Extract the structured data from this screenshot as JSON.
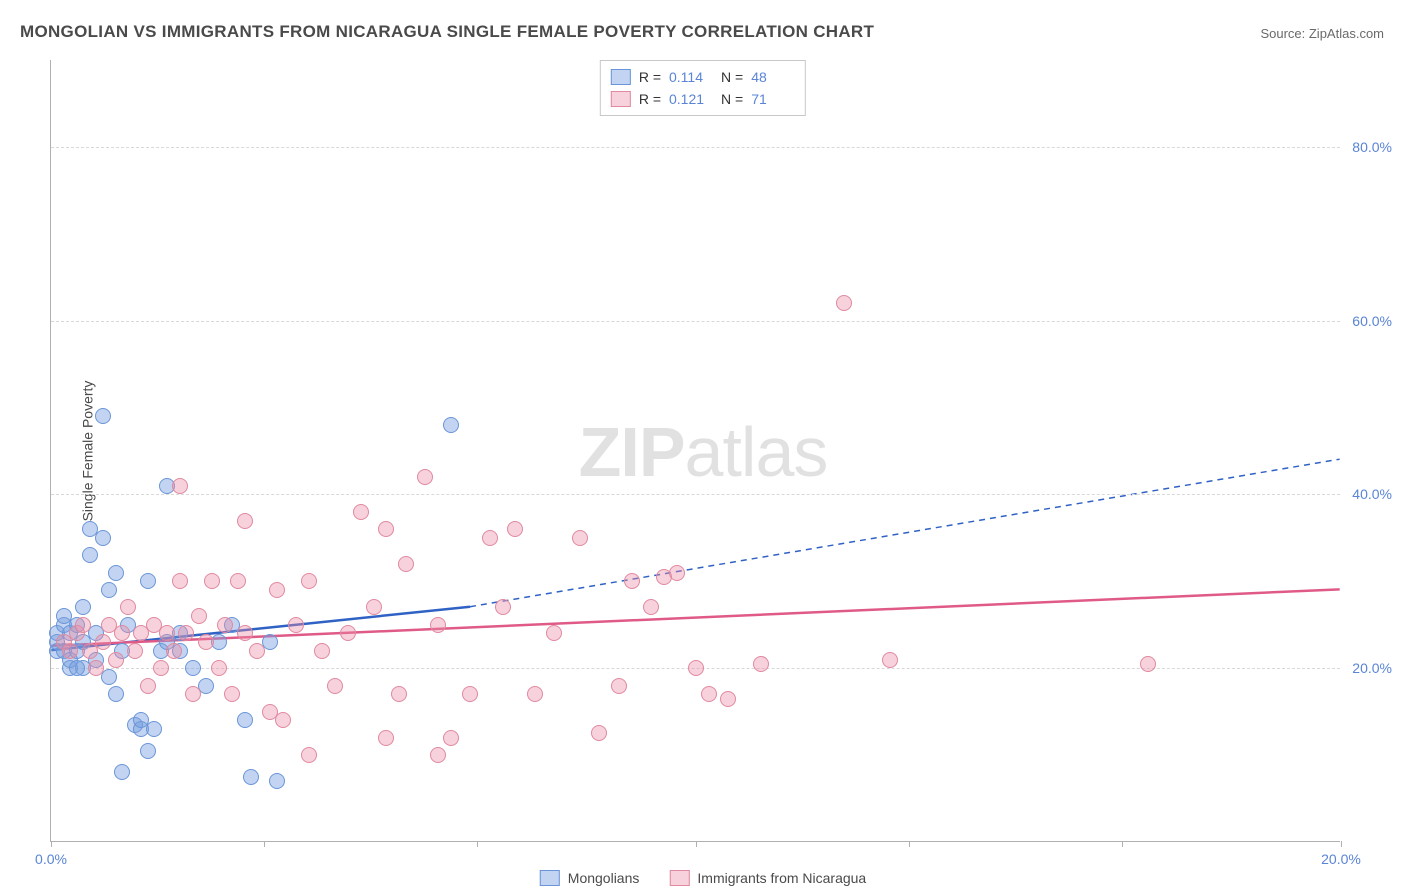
{
  "title": "MONGOLIAN VS IMMIGRANTS FROM NICARAGUA SINGLE FEMALE POVERTY CORRELATION CHART",
  "source": "Source: ZipAtlas.com",
  "y_axis_label": "Single Female Poverty",
  "watermark_a": "ZIP",
  "watermark_b": "atlas",
  "chart": {
    "type": "scatter",
    "background_color": "#ffffff",
    "grid_color": "#d8d8d8",
    "axis_color": "#b0b0b0",
    "tick_color": "#5a84d6",
    "xlim": [
      0,
      20
    ],
    "ylim": [
      0,
      90
    ],
    "y_ticks": [
      20,
      40,
      60,
      80
    ],
    "y_tick_labels": [
      "20.0%",
      "40.0%",
      "60.0%",
      "80.0%"
    ],
    "x_tick_positions": [
      0,
      3.3,
      6.6,
      10,
      13.3,
      16.6,
      20
    ],
    "x_tick_labels": [
      "0.0%",
      "",
      "",
      "",
      "",
      "",
      "20.0%"
    ],
    "series": [
      {
        "name": "Mongolians",
        "point_fill": "rgba(120,160,225,0.45)",
        "point_stroke": "#6a95d8",
        "line_color": "#2f62c4",
        "R": "0.114",
        "N": "48",
        "trend": {
          "x1": 0,
          "y1": 22,
          "x2_solid": 6.5,
          "y2_solid": 27,
          "x2": 20,
          "y2": 44,
          "dashed_after_solid": true
        },
        "points": [
          [
            0.1,
            22
          ],
          [
            0.1,
            23
          ],
          [
            0.1,
            24
          ],
          [
            0.2,
            22
          ],
          [
            0.2,
            25
          ],
          [
            0.2,
            26
          ],
          [
            0.3,
            20
          ],
          [
            0.3,
            21
          ],
          [
            0.3,
            24
          ],
          [
            0.4,
            22
          ],
          [
            0.4,
            25
          ],
          [
            0.5,
            20
          ],
          [
            0.5,
            23
          ],
          [
            0.5,
            27
          ],
          [
            0.6,
            36
          ],
          [
            0.6,
            33
          ],
          [
            0.7,
            21
          ],
          [
            0.7,
            24
          ],
          [
            0.8,
            49
          ],
          [
            0.8,
            35
          ],
          [
            0.9,
            19
          ],
          [
            1.0,
            31
          ],
          [
            1.0,
            17
          ],
          [
            1.1,
            22
          ],
          [
            1.2,
            25
          ],
          [
            1.3,
            13.5
          ],
          [
            1.4,
            13
          ],
          [
            1.4,
            14
          ],
          [
            1.5,
            30
          ],
          [
            1.5,
            10.5
          ],
          [
            1.6,
            13
          ],
          [
            1.7,
            22
          ],
          [
            1.8,
            23
          ],
          [
            1.8,
            41
          ],
          [
            2.0,
            22
          ],
          [
            2.0,
            24
          ],
          [
            2.2,
            20
          ],
          [
            2.4,
            18
          ],
          [
            2.6,
            23
          ],
          [
            2.8,
            25
          ],
          [
            3.0,
            14
          ],
          [
            3.1,
            7.5
          ],
          [
            3.4,
            23
          ],
          [
            3.5,
            7
          ],
          [
            6.2,
            48
          ],
          [
            1.1,
            8
          ],
          [
            0.9,
            29
          ],
          [
            0.4,
            20
          ]
        ]
      },
      {
        "name": "Immigrants from Nicaragua",
        "point_fill": "rgba(235,140,165,0.40)",
        "point_stroke": "#e089a0",
        "line_color": "#e05a87",
        "R": "0.121",
        "N": "71",
        "trend": {
          "x1": 0,
          "y1": 22.5,
          "x2": 20,
          "y2": 29,
          "dashed_after_solid": false
        },
        "points": [
          [
            0.2,
            23
          ],
          [
            0.3,
            22
          ],
          [
            0.4,
            24
          ],
          [
            0.5,
            25
          ],
          [
            0.6,
            22
          ],
          [
            0.7,
            20
          ],
          [
            0.8,
            23
          ],
          [
            0.9,
            25
          ],
          [
            1.0,
            21
          ],
          [
            1.1,
            24
          ],
          [
            1.2,
            27
          ],
          [
            1.3,
            22
          ],
          [
            1.4,
            24
          ],
          [
            1.5,
            18
          ],
          [
            1.6,
            25
          ],
          [
            1.7,
            20
          ],
          [
            1.8,
            24
          ],
          [
            1.9,
            22
          ],
          [
            2.0,
            30
          ],
          [
            2.1,
            24
          ],
          [
            2.2,
            17
          ],
          [
            2.3,
            26
          ],
          [
            2.4,
            23
          ],
          [
            2.5,
            30
          ],
          [
            2.6,
            20
          ],
          [
            2.7,
            25
          ],
          [
            2.8,
            17
          ],
          [
            2.9,
            30
          ],
          [
            3.0,
            24
          ],
          [
            3.2,
            22
          ],
          [
            3.4,
            15
          ],
          [
            3.5,
            29
          ],
          [
            3.6,
            14
          ],
          [
            3.8,
            25
          ],
          [
            4.0,
            30
          ],
          [
            4.2,
            22
          ],
          [
            4.4,
            18
          ],
          [
            4.6,
            24
          ],
          [
            4.8,
            38
          ],
          [
            5.0,
            27
          ],
          [
            5.2,
            36
          ],
          [
            5.4,
            17
          ],
          [
            5.5,
            32
          ],
          [
            5.8,
            42
          ],
          [
            6.0,
            25
          ],
          [
            6.2,
            12
          ],
          [
            6.5,
            17
          ],
          [
            6.8,
            35
          ],
          [
            7.0,
            27
          ],
          [
            7.2,
            36
          ],
          [
            7.5,
            17
          ],
          [
            7.8,
            24
          ],
          [
            8.2,
            35
          ],
          [
            8.5,
            12.5
          ],
          [
            8.8,
            18
          ],
          [
            9.0,
            30
          ],
          [
            9.3,
            27
          ],
          [
            9.5,
            30.5
          ],
          [
            9.7,
            31
          ],
          [
            10.0,
            20
          ],
          [
            10.2,
            17
          ],
          [
            10.5,
            16.5
          ],
          [
            11.0,
            20.5
          ],
          [
            12.3,
            62
          ],
          [
            13.0,
            21
          ],
          [
            17.0,
            20.5
          ],
          [
            4.0,
            10
          ],
          [
            5.2,
            12
          ],
          [
            6.0,
            10
          ],
          [
            2.0,
            41
          ],
          [
            3.0,
            37
          ]
        ]
      }
    ]
  },
  "legend_bottom": [
    {
      "label": "Mongolians",
      "swatch_fill": "rgba(120,160,225,0.45)",
      "swatch_stroke": "#6a95d8"
    },
    {
      "label": "Immigrants from Nicaragua",
      "swatch_fill": "rgba(235,140,165,0.40)",
      "swatch_stroke": "#e089a0"
    }
  ]
}
